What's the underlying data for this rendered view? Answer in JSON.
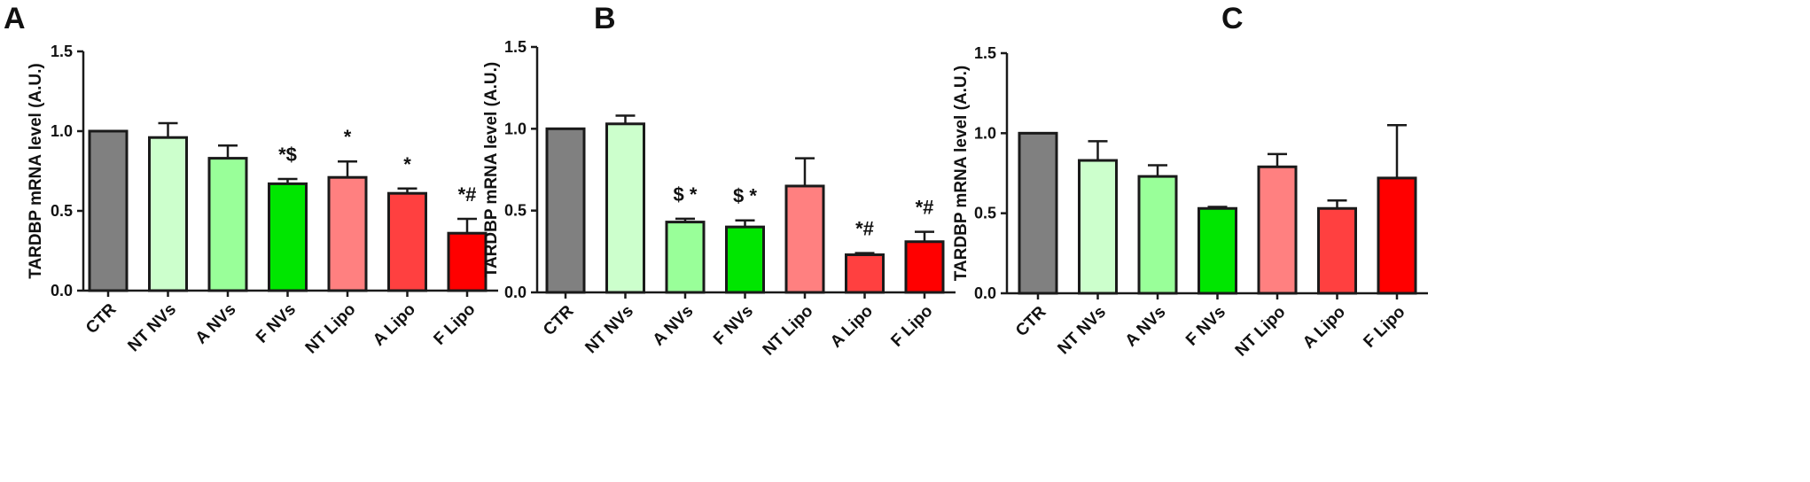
{
  "colors": {
    "CTR": "#808080",
    "NT NVs": "#ccffcc",
    "A NVs": "#99ff99",
    "F NVs": "#00e600",
    "NT Lipo": "#ff8080",
    "A Lipo": "#ff4040",
    "F Lipo": "#ff0000",
    "axis": "#1a1a1a"
  },
  "chart_data": [
    {
      "type": "bar",
      "panel_label": "A",
      "ylabel": "TARDBP mRNA level (A.U.)",
      "xlabel": "",
      "ylim": [
        0,
        1.5
      ],
      "yticks": [
        "0.0",
        "0.5",
        "1.0",
        "1.5"
      ],
      "grid": false,
      "categories": [
        "CTR",
        "NT NVs",
        "A NVs",
        "F NVs",
        "NT Lipo",
        "A Lipo",
        "F Lipo"
      ],
      "values": [
        1.0,
        0.96,
        0.83,
        0.67,
        0.71,
        0.61,
        0.36
      ],
      "errors": [
        0.0,
        0.09,
        0.08,
        0.03,
        0.1,
        0.03,
        0.09
      ],
      "annotations": [
        "",
        "",
        "",
        "*$",
        "*",
        "*",
        "*#"
      ]
    },
    {
      "type": "bar",
      "panel_label": "B",
      "ylabel": "TARDBP mRNA level (A.U.)",
      "xlabel": "",
      "ylim": [
        0,
        1.5
      ],
      "yticks": [
        "0.0",
        "0.5",
        "1.0",
        "1.5"
      ],
      "grid": false,
      "categories": [
        "CTR",
        "NT NVs",
        "A NVs",
        "F NVs",
        "NT Lipo",
        "A Lipo",
        "F Lipo"
      ],
      "values": [
        1.0,
        1.03,
        0.43,
        0.4,
        0.65,
        0.23,
        0.31
      ],
      "errors": [
        0.0,
        0.05,
        0.02,
        0.04,
        0.17,
        0.01,
        0.06
      ],
      "annotations": [
        "",
        "",
        "$ *",
        "$ *",
        "",
        "*#",
        "*#"
      ]
    },
    {
      "type": "bar",
      "panel_label": "C",
      "ylabel": "TARDBP mRNA level (A.U.)",
      "xlabel": "",
      "ylim": [
        0,
        1.5
      ],
      "yticks": [
        "0.0",
        "0.5",
        "1.0",
        "1.5"
      ],
      "grid": false,
      "categories": [
        "CTR",
        "NT NVs",
        "A NVs",
        "F NVs",
        "NT Lipo",
        "A Lipo",
        "F Lipo"
      ],
      "values": [
        1.0,
        0.83,
        0.73,
        0.53,
        0.79,
        0.53,
        0.72
      ],
      "errors": [
        0.0,
        0.12,
        0.07,
        0.01,
        0.08,
        0.05,
        0.33
      ],
      "annotations": [
        "",
        "",
        "",
        "",
        "",
        "",
        ""
      ]
    }
  ]
}
